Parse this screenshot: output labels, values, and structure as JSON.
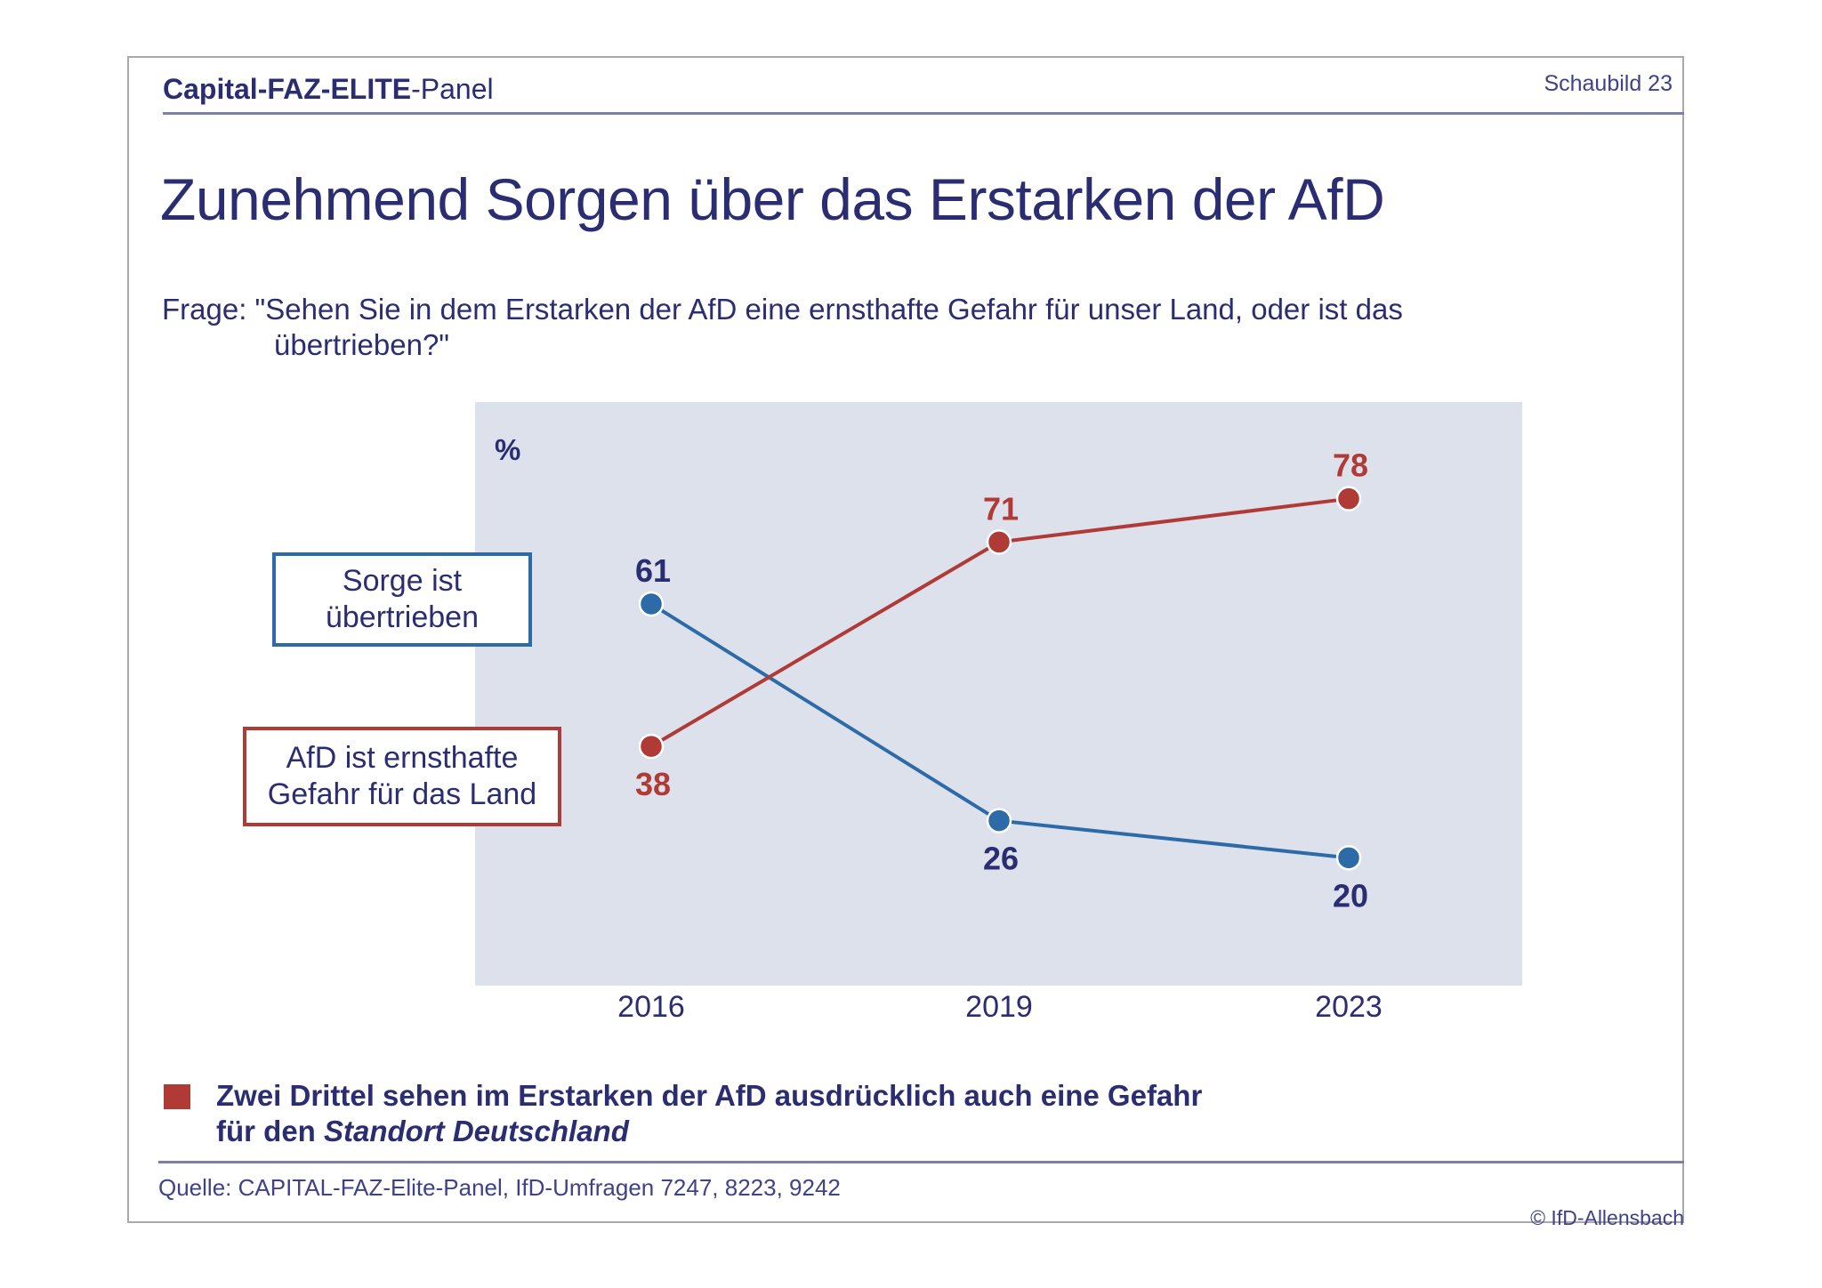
{
  "header": {
    "brand_parts": [
      {
        "text": "Capital-",
        "bold": true
      },
      {
        "text": "FAZ-ELITE",
        "bold": true
      },
      {
        "text": "-Panel",
        "bold": false
      }
    ],
    "figure_label": "Schaubild  23"
  },
  "title": "Zunehmend Sorgen über das Erstarken der AfD",
  "question": {
    "line1": "Frage: \"Sehen Sie in dem Erstarken der AfD eine ernsthafte Gefahr für unser Land, oder ist das",
    "line2": "übertrieben?\""
  },
  "legend": {
    "blue_line1": "Sorge ist",
    "blue_line2": "übertrieben",
    "red_line1": "AfD ist ernsthafte",
    "red_line2": "Gefahr für das Land"
  },
  "colors": {
    "blue": "#2d6aa8",
    "red": "#b03a36",
    "plot_bg": "#dce1ec",
    "text_navy": "#2b2d72"
  },
  "chart_data": {
    "type": "line",
    "title": "Zunehmend Sorgen über das Erstarken der AfD",
    "xlabel": "",
    "ylabel": "%",
    "categories": [
      "2016",
      "2019",
      "2023"
    ],
    "ylim": [
      0,
      100
    ],
    "grid": false,
    "legend_placement": "left",
    "series": [
      {
        "name": "Sorge ist übertrieben",
        "color": "#2d6aa8",
        "label_color": "#2b2d72",
        "values": [
          61,
          26,
          20
        ],
        "label_pos": [
          "above",
          "below",
          "below"
        ]
      },
      {
        "name": "AfD ist ernsthafte Gefahr für das Land",
        "color": "#b03a36",
        "label_color": "#b03a36",
        "values": [
          38,
          71,
          78
        ],
        "label_pos": [
          "below",
          "above",
          "above"
        ]
      }
    ]
  },
  "footnote": {
    "line1": "Zwei Drittel sehen im Erstarken der AfD ausdrücklich auch eine Gefahr",
    "line2_prefix": "für den ",
    "line2_italic": "Standort Deutschland"
  },
  "source": "Quelle: CAPITAL-FAZ-Elite-Panel, IfD-Umfragen 7247, 8223, 9242",
  "copyright": "© IfD-Allensbach"
}
